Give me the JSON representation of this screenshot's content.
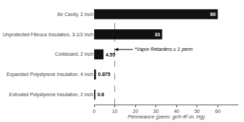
{
  "chart_data": {
    "type": "bar",
    "orientation": "horizontal",
    "categories": [
      "Extruded Polystyrene Insulation, 2 inch",
      "Expanded Polystyrene Insulation, 4 inch",
      "Corkboard, 2 inch",
      "Unprotected Fibrous Insulation, 3-1/2 inch",
      "Air Cavity, 2 inch"
    ],
    "values": [
      0.6,
      0.875,
      4.55,
      33,
      60
    ],
    "color": "#111111",
    "xlabel": "Permeance (perm: gr/h·ft²-in. Hg)",
    "xlim": [
      0,
      70
    ],
    "xticks": [
      0,
      10,
      20,
      30,
      40,
      50,
      60
    ],
    "data_labels": true,
    "grid": false,
    "reference_line": {
      "x": 10,
      "line_style": "dashed"
    },
    "annotations": [
      {
        "text": "*Vapor Retarders ≤ 1 perm",
        "x": 10,
        "y": "Corkboard, 2 inch"
      }
    ]
  }
}
